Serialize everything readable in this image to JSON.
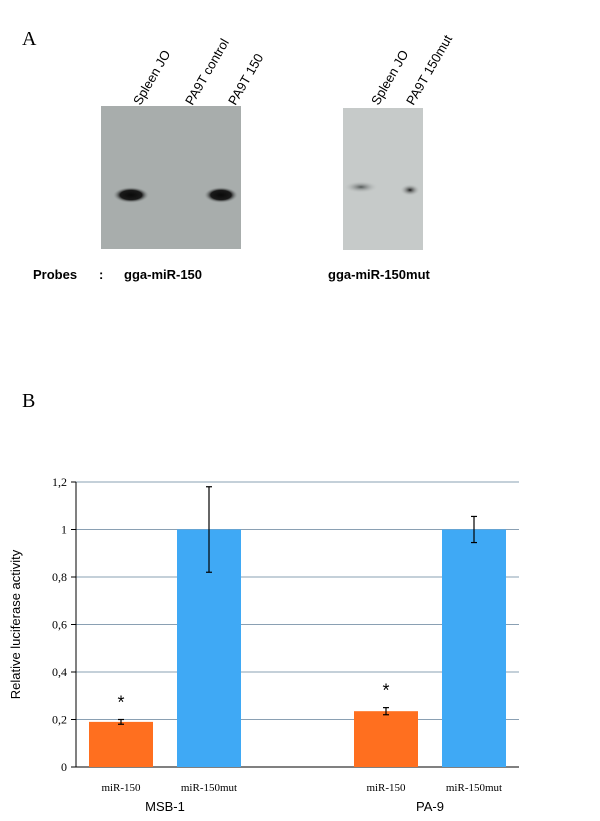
{
  "panel_a": {
    "label": "A",
    "blot1_lanes": [
      "Spleen JO",
      "PA9T control",
      "PA9T 150"
    ],
    "blot2_lanes": [
      "Spleen JO",
      "PA9T 150mut"
    ],
    "probes_label": "Probes",
    "probes_colon": ":",
    "probe1": "gga-miR-150",
    "probe2": "gga-miR-150mut"
  },
  "panel_b": {
    "label": "B"
  },
  "chart_data": {
    "type": "bar",
    "ylabel": "Relative luciferase activity",
    "ylim": [
      0,
      1.2
    ],
    "yticks": [
      "0",
      "0,2",
      "0,4",
      "0,6",
      "0,8",
      "1",
      "1,2"
    ],
    "grid": true,
    "groups": [
      {
        "name": "MSB-1",
        "bars": [
          {
            "label": "miR-150",
            "value": 0.19,
            "error": 0.01,
            "color": "#ff6f1f",
            "significance": "*"
          },
          {
            "label": "miR-150mut",
            "value": 1.0,
            "error": 0.18,
            "color": "#3fa9f5",
            "significance": ""
          }
        ]
      },
      {
        "name": "PA-9",
        "bars": [
          {
            "label": "miR-150",
            "value": 0.235,
            "error": 0.015,
            "color": "#ff6f1f",
            "significance": "*"
          },
          {
            "label": "miR-150mut",
            "value": 1.0,
            "error": 0.055,
            "color": "#3fa9f5",
            "significance": ""
          }
        ]
      }
    ]
  }
}
